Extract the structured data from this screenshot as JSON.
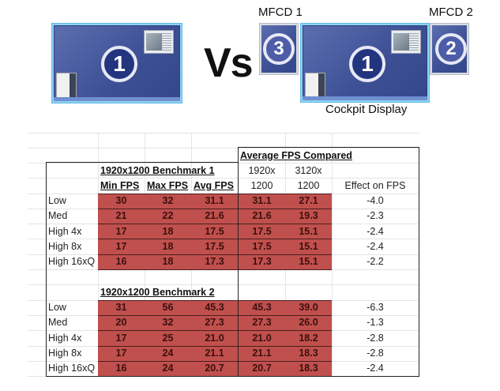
{
  "top": {
    "left_setup": {
      "badge": "1"
    },
    "vs_label": "Vs",
    "right_setup": {
      "left_monitor": {
        "label": "MFCD 1",
        "badge": "3"
      },
      "center_monitor": {
        "label": "Cockpit Display",
        "badge": "1"
      },
      "right_monitor": {
        "label": "MFCD 2",
        "badge": "2"
      }
    }
  },
  "table": {
    "colors": {
      "data_fill": "#c0504d",
      "data_text": "#3b0f0e",
      "border": "#222222",
      "gridline": "#e2e4e8"
    },
    "compare_header": "Average FPS Compared",
    "compare_cols": [
      {
        "line1": "1920x",
        "line2": "1200"
      },
      {
        "line1": "3120x",
        "line2": "1200"
      }
    ],
    "effect_header": "Effect on FPS",
    "column_headers": [
      "Min FPS",
      "Max FPS",
      "Avg FPS"
    ],
    "benchmarks": [
      {
        "title": "1920x1200 Benchmark 1",
        "rows": [
          {
            "label": "Low",
            "min": "30",
            "max": "32",
            "avg": "31.1",
            "c1920": "31.1",
            "c3120": "27.1",
            "effect": "-4.0"
          },
          {
            "label": "Med",
            "min": "21",
            "max": "22",
            "avg": "21.6",
            "c1920": "21.6",
            "c3120": "19.3",
            "effect": "-2.3"
          },
          {
            "label": "High 4x",
            "min": "17",
            "max": "18",
            "avg": "17.5",
            "c1920": "17.5",
            "c3120": "15.1",
            "effect": "-2.4"
          },
          {
            "label": "High 8x",
            "min": "17",
            "max": "18",
            "avg": "17.5",
            "c1920": "17.5",
            "c3120": "15.1",
            "effect": "-2.4"
          },
          {
            "label": "High 16xQ",
            "min": "16",
            "max": "18",
            "avg": "17.3",
            "c1920": "17.3",
            "c3120": "15.1",
            "effect": "-2.2"
          }
        ]
      },
      {
        "title": "1920x1200 Benchmark 2",
        "rows": [
          {
            "label": "Low",
            "min": "31",
            "max": "56",
            "avg": "45.3",
            "c1920": "45.3",
            "c3120": "39.0",
            "effect": "-6.3"
          },
          {
            "label": "Med",
            "min": "20",
            "max": "32",
            "avg": "27.3",
            "c1920": "27.3",
            "c3120": "26.0",
            "effect": "-1.3"
          },
          {
            "label": "High 4x",
            "min": "17",
            "max": "25",
            "avg": "21.0",
            "c1920": "21.0",
            "c3120": "18.2",
            "effect": "-2.8"
          },
          {
            "label": "High 8x",
            "min": "17",
            "max": "24",
            "avg": "21.1",
            "c1920": "21.1",
            "c3120": "18.3",
            "effect": "-2.8"
          },
          {
            "label": "High 16xQ",
            "min": "16",
            "max": "24",
            "avg": "20.7",
            "c1920": "20.7",
            "c3120": "18.3",
            "effect": "-2.4"
          }
        ]
      }
    ]
  }
}
